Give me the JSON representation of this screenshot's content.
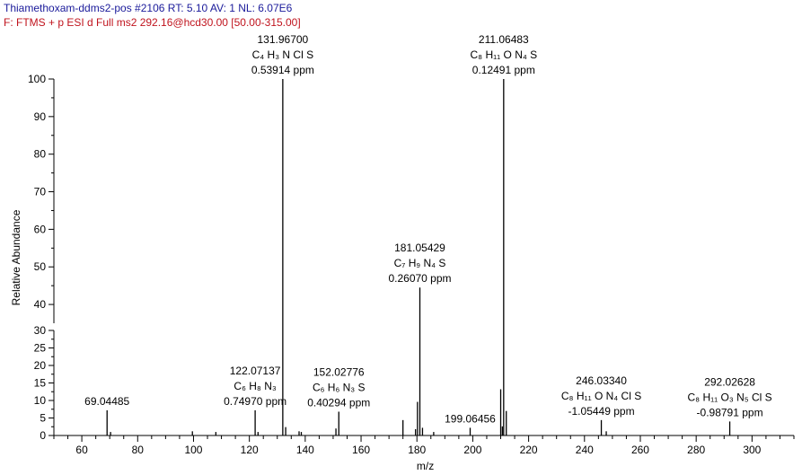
{
  "header": {
    "line1": "Thiamethoxam-ddms2-pos #2106   RT: 5.10   AV: 1   NL: 6.07E6",
    "line2": "F: FTMS + p ESI d Full ms2 292.16@hcd30.00 [50.00-315.00]",
    "line1_color": "#1a1a9a",
    "line2_color": "#c0141e"
  },
  "chart_data": {
    "type": "bar",
    "xlabel": "m/z",
    "ylabel": "Relative Abundance",
    "xlim": [
      50,
      315
    ],
    "ylim": [
      0,
      100
    ],
    "x_ticks": [
      60,
      80,
      100,
      120,
      140,
      160,
      180,
      200,
      220,
      240,
      260,
      280,
      300
    ],
    "y_ticks": [
      0,
      5,
      10,
      15,
      20,
      25,
      30,
      40,
      50,
      60,
      70,
      80,
      90,
      100
    ],
    "y_tick_labels": [
      "0",
      "5",
      "10",
      "15",
      "20",
      "25",
      "30",
      "40",
      "50",
      "60",
      "70",
      "80",
      "90",
      "100"
    ],
    "y_axis_break": 35,
    "peaks": [
      {
        "mz": 69.04485,
        "value": 7.2
      },
      {
        "mz": 70.3,
        "value": 1.0
      },
      {
        "mz": 99.6,
        "value": 1.2
      },
      {
        "mz": 108.0,
        "value": 1.0
      },
      {
        "mz": 122.07137,
        "value": 7.2
      },
      {
        "mz": 123.1,
        "value": 1.0
      },
      {
        "mz": 131.967,
        "value": 100
      },
      {
        "mz": 133.0,
        "value": 2.4
      },
      {
        "mz": 137.8,
        "value": 1.2
      },
      {
        "mz": 138.6,
        "value": 1.0
      },
      {
        "mz": 151.0,
        "value": 2.0
      },
      {
        "mz": 152.02776,
        "value": 6.8
      },
      {
        "mz": 175.0,
        "value": 4.4
      },
      {
        "mz": 179.5,
        "value": 1.8
      },
      {
        "mz": 180.2,
        "value": 9.6
      },
      {
        "mz": 181.05429,
        "value": 44.5
      },
      {
        "mz": 182.0,
        "value": 2.2
      },
      {
        "mz": 186.0,
        "value": 1.0
      },
      {
        "mz": 199.06456,
        "value": 2.2
      },
      {
        "mz": 210.0,
        "value": 13.2
      },
      {
        "mz": 210.6,
        "value": 2.6
      },
      {
        "mz": 211.06483,
        "value": 100
      },
      {
        "mz": 212.0,
        "value": 7.0
      },
      {
        "mz": 246.0334,
        "value": 4.4
      },
      {
        "mz": 247.8,
        "value": 1.2
      },
      {
        "mz": 292.02628,
        "value": 4.0
      }
    ],
    "annotations": [
      {
        "mz": 131.967,
        "lines": [
          "131.96700",
          "C₄ H₃ N Cl S",
          "0.53914 ppm"
        ]
      },
      {
        "mz": 211.06483,
        "lines": [
          "211.06483",
          "C₈ H₁₁ O N₄ S",
          "0.12491 ppm"
        ]
      },
      {
        "mz": 181.05429,
        "lines": [
          "181.05429",
          "C₇ H₉ N₄ S",
          "0.26070 ppm"
        ]
      },
      {
        "mz": 69.04485,
        "lines": [
          "69.04485"
        ]
      },
      {
        "mz": 122.07137,
        "lines": [
          "122.07137",
          "C₆ H₈ N₃",
          "0.74970 ppm"
        ]
      },
      {
        "mz": 152.02776,
        "lines": [
          "152.02776",
          "C₆ H₆ N₃ S",
          "0.40294 ppm"
        ]
      },
      {
        "mz": 199.06456,
        "lines": [
          "199.06456"
        ]
      },
      {
        "mz": 246.0334,
        "lines": [
          "246.03340",
          "C₈ H₁₁ O N₄ Cl S",
          "-1.05449 ppm"
        ]
      },
      {
        "mz": 292.02628,
        "lines": [
          "292.02628",
          "C₈ H₁₁ O₃ N₅ Cl S",
          "-0.98791 ppm"
        ]
      }
    ]
  }
}
